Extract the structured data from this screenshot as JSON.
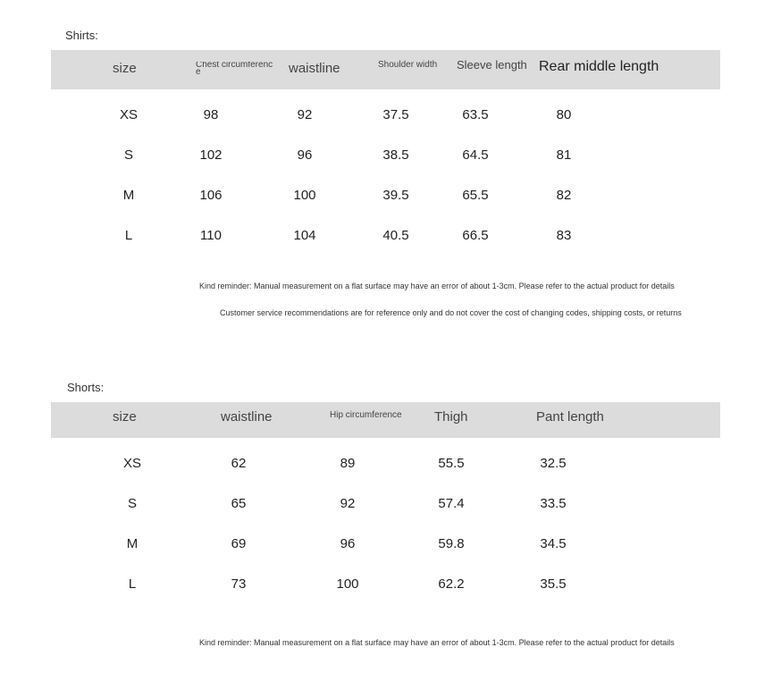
{
  "shirts": {
    "caption": "Shirts:",
    "headers": [
      "size",
      "Chest circumferenc\ne",
      "waistline",
      "Shoulder width",
      "Sleeve length",
      "Rear middle length"
    ],
    "rows": [
      [
        "XS",
        "98",
        "92",
        "37.5",
        "63.5",
        "80"
      ],
      [
        "S",
        "102",
        "96",
        "38.5",
        "64.5",
        "81"
      ],
      [
        "M",
        "106",
        "100",
        "39.5",
        "65.5",
        "82"
      ],
      [
        "L",
        "110",
        "104",
        "40.5",
        "66.5",
        "83"
      ]
    ],
    "note1": "Kind reminder: Manual measurement on a flat surface may have an error of about 1-3cm. Please refer to the actual product for details",
    "note2": "Customer service recommendations are for reference only and do not cover the cost of changing codes, shipping costs, or returns"
  },
  "shorts": {
    "caption": "Shorts:",
    "headers": [
      "size",
      "waistline",
      "Hip circumference",
      "Thigh",
      "Pant length"
    ],
    "rows": [
      [
        "XS",
        "62",
        "89",
        "55.5",
        "32.5"
      ],
      [
        "S",
        "65",
        "92",
        "57.4",
        "33.5"
      ],
      [
        "M",
        "69",
        "96",
        "59.8",
        "34.5"
      ],
      [
        "L",
        "73",
        "100",
        "62.2",
        "35.5"
      ]
    ],
    "note1": "Kind reminder: Manual measurement on a flat surface may have an error of about 1-3cm. Please refer to the actual product for details"
  }
}
